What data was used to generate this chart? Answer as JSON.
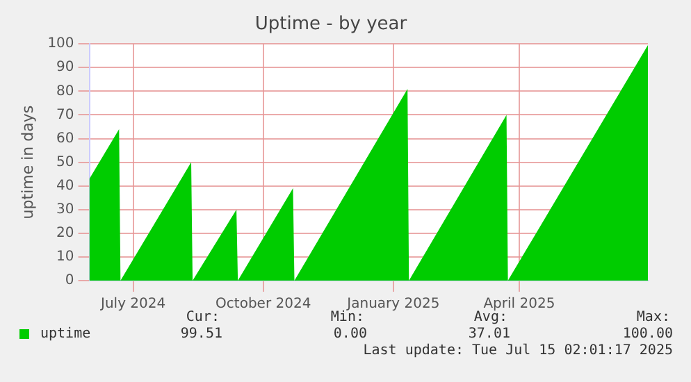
{
  "chart_data": {
    "type": "area",
    "title": "Uptime - by year",
    "ylabel": "uptime in days",
    "x": [
      "2024-06-15",
      "2024-07-06",
      "2024-07-07",
      "2024-08-26",
      "2024-08-27",
      "2024-09-27",
      "2024-09-28",
      "2024-11-06",
      "2024-11-07",
      "2025-01-26",
      "2025-01-27",
      "2025-04-06",
      "2025-04-07",
      "2025-07-15"
    ],
    "series": [
      {
        "name": "uptime",
        "color": "#00cc00",
        "values": [
          43,
          64,
          0,
          50,
          0,
          30,
          0,
          39,
          0,
          81,
          0,
          70,
          0,
          99.5
        ]
      }
    ],
    "xlim": [
      "2024-06-15",
      "2025-07-15"
    ],
    "xticks": [
      {
        "value": "2024-07-16",
        "label": "July 2024"
      },
      {
        "value": "2024-10-16",
        "label": "October 2024"
      },
      {
        "value": "2025-01-16",
        "label": "January 2025"
      },
      {
        "value": "2025-04-15",
        "label": "April 2025"
      }
    ],
    "ylim": [
      0,
      100
    ],
    "yticks": [
      0,
      10,
      20,
      30,
      40,
      50,
      60,
      70,
      80,
      90,
      100
    ],
    "grid": true,
    "legend": "bottom left",
    "annotations": [
      "Cur:",
      "Min:",
      "Avg:",
      "Max:",
      "99.51",
      "0.00",
      "37.01",
      "100.00",
      "Last update: Tue Jul 15 02:01:17 2025"
    ]
  }
}
